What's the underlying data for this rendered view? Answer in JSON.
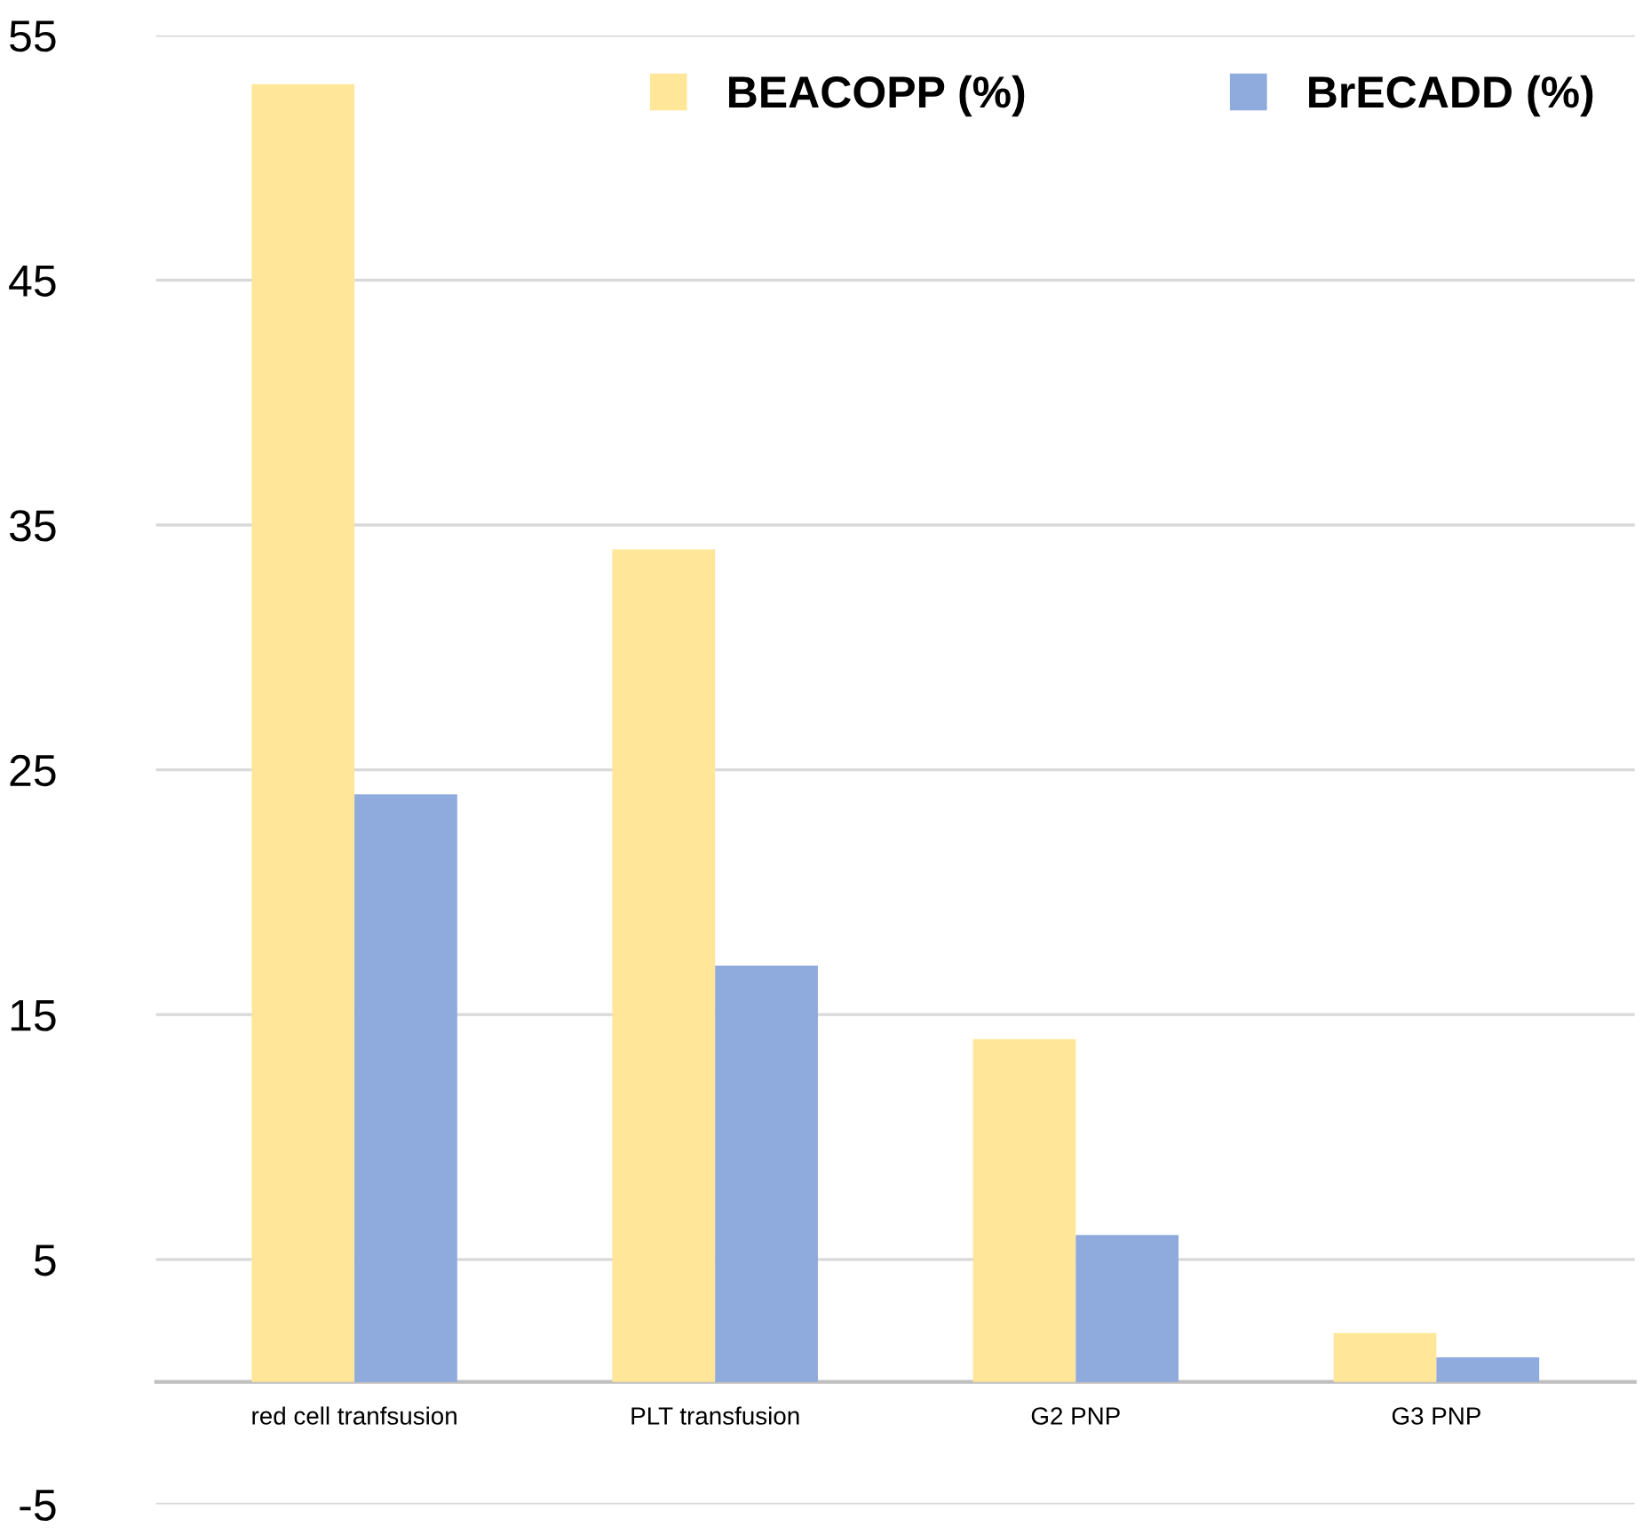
{
  "chart_data": {
    "type": "bar",
    "categories": [
      "red cell tranfsusion",
      "PLT transfusion",
      "G2 PNP",
      "G3 PNP"
    ],
    "series": [
      {
        "name": "BEACOPP (%)",
        "color": "#ffe699",
        "values": [
          53,
          34,
          14,
          2
        ]
      },
      {
        "name": "BrECADD (%)",
        "color": "#8faadc",
        "values": [
          24,
          17,
          6,
          1
        ]
      }
    ],
    "ylim": [
      -5,
      55
    ],
    "yticks": [
      -5,
      5,
      15,
      25,
      35,
      45,
      55
    ],
    "grid": "y",
    "legend": "top right"
  }
}
